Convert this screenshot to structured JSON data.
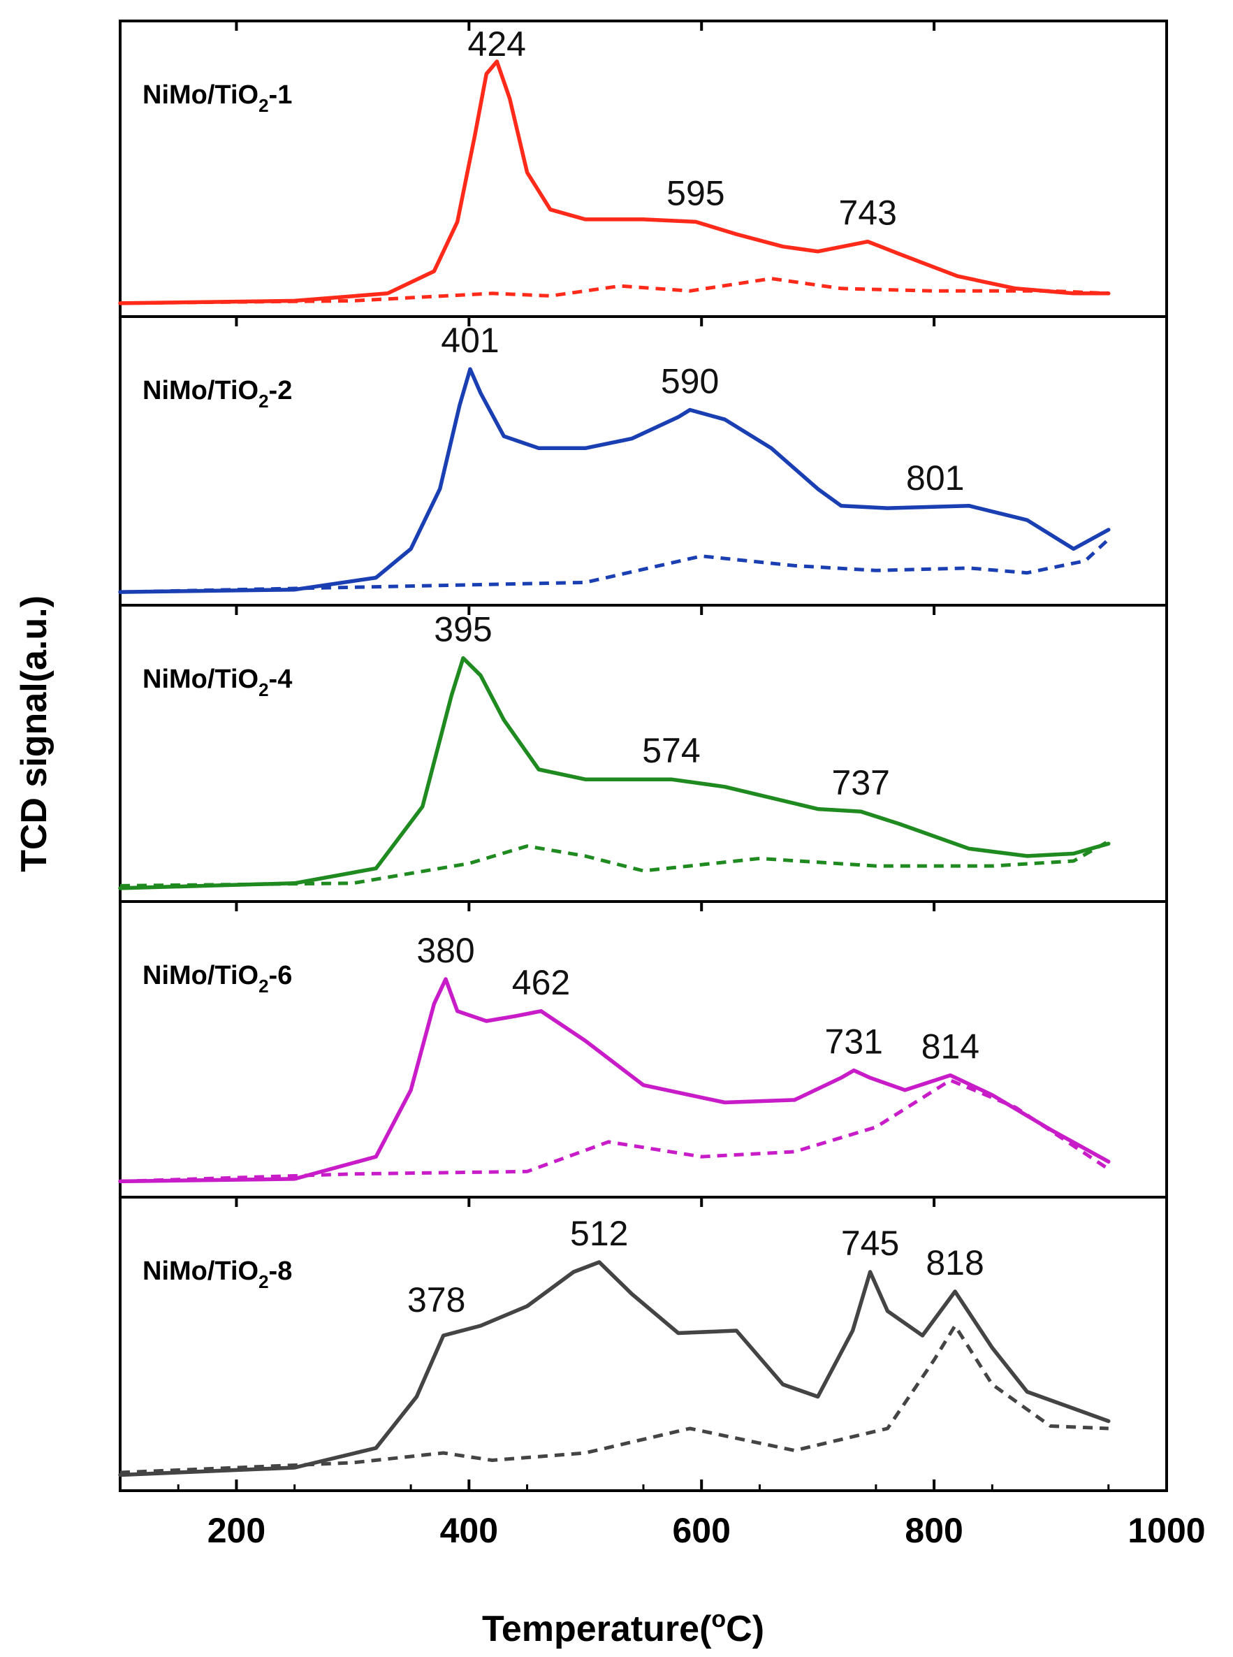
{
  "chart_data": {
    "type": "line",
    "ylabel": "TCD signal(a.u.)",
    "xlabel_prefix": "Temperature(",
    "xlabel_degree": "o",
    "xlabel_suffix": "C)",
    "xlim": [
      100,
      1000
    ],
    "xticks": [
      "200",
      "400",
      "600",
      "800",
      "1000"
    ],
    "xtick_values": [
      200,
      400,
      600,
      800,
      1000
    ],
    "panels": [
      {
        "name": "NiMo/TiO2-1",
        "label_main": "NiMo/TiO",
        "label_sub": "2",
        "label_suffix": "-1",
        "color": "#ff2a1a",
        "peaks": [
          {
            "x": 424,
            "label": "424"
          },
          {
            "x": 595,
            "label": "595"
          },
          {
            "x": 743,
            "label": "743"
          }
        ],
        "solid": {
          "x": [
            100,
            250,
            330,
            370,
            390,
            405,
            415,
            424,
            435,
            450,
            470,
            500,
            550,
            595,
            630,
            670,
            700,
            743,
            770,
            820,
            870,
            920,
            950
          ],
          "y": [
            0.02,
            0.03,
            0.06,
            0.15,
            0.35,
            0.7,
            0.95,
            1.0,
            0.85,
            0.55,
            0.4,
            0.36,
            0.36,
            0.35,
            0.3,
            0.25,
            0.23,
            0.27,
            0.22,
            0.13,
            0.08,
            0.06,
            0.06
          ]
        },
        "dashed": {
          "x": [
            100,
            300,
            420,
            470,
            530,
            590,
            660,
            720,
            800,
            900,
            950
          ],
          "y": [
            0.02,
            0.03,
            0.06,
            0.05,
            0.09,
            0.07,
            0.12,
            0.08,
            0.07,
            0.07,
            0.06
          ]
        }
      },
      {
        "name": "NiMo/TiO2-2",
        "label_main": "NiMo/TiO",
        "label_sub": "2",
        "label_suffix": "-2",
        "color": "#1a3fb3",
        "peaks": [
          {
            "x": 401,
            "label": "401"
          },
          {
            "x": 590,
            "label": "590"
          },
          {
            "x": 801,
            "label": "801"
          }
        ],
        "solid": {
          "x": [
            100,
            250,
            320,
            350,
            375,
            392,
            401,
            410,
            430,
            460,
            500,
            540,
            580,
            590,
            620,
            660,
            700,
            720,
            760,
            830,
            880,
            920,
            950
          ],
          "y": [
            0.02,
            0.03,
            0.08,
            0.2,
            0.45,
            0.8,
            0.95,
            0.85,
            0.67,
            0.62,
            0.62,
            0.66,
            0.75,
            0.78,
            0.74,
            0.62,
            0.45,
            0.38,
            0.37,
            0.38,
            0.32,
            0.2,
            0.28
          ]
        },
        "dashed": {
          "x": [
            100,
            300,
            500,
            600,
            680,
            750,
            830,
            880,
            930,
            950
          ],
          "y": [
            0.02,
            0.04,
            0.06,
            0.17,
            0.13,
            0.11,
            0.12,
            0.1,
            0.15,
            0.24
          ]
        }
      },
      {
        "name": "NiMo/TiO2-4",
        "label_main": "NiMo/TiO",
        "label_sub": "2",
        "label_suffix": "-4",
        "color": "#1f8a1f",
        "peaks": [
          {
            "x": 395,
            "label": "395"
          },
          {
            "x": 574,
            "label": "574"
          },
          {
            "x": 737,
            "label": "737"
          }
        ],
        "solid": {
          "x": [
            100,
            250,
            320,
            360,
            385,
            395,
            410,
            430,
            460,
            500,
            574,
            620,
            700,
            737,
            770,
            830,
            880,
            920,
            950
          ],
          "y": [
            0.02,
            0.04,
            0.1,
            0.35,
            0.8,
            0.95,
            0.88,
            0.7,
            0.5,
            0.46,
            0.46,
            0.43,
            0.34,
            0.33,
            0.28,
            0.18,
            0.15,
            0.16,
            0.2
          ]
        },
        "dashed": {
          "x": [
            100,
            300,
            400,
            450,
            500,
            550,
            650,
            750,
            850,
            920,
            950
          ],
          "y": [
            0.03,
            0.04,
            0.12,
            0.19,
            0.15,
            0.09,
            0.14,
            0.11,
            0.11,
            0.13,
            0.21
          ]
        }
      },
      {
        "name": "NiMo/TiO2-6",
        "label_main": "NiMo/TiO",
        "label_sub": "2",
        "label_suffix": "-6",
        "color": "#c81cc8",
        "peaks": [
          {
            "x": 380,
            "label": "380"
          },
          {
            "x": 462,
            "label": "462"
          },
          {
            "x": 731,
            "label": "731"
          },
          {
            "x": 814,
            "label": "814"
          }
        ],
        "solid": {
          "x": [
            100,
            250,
            320,
            350,
            370,
            380,
            390,
            415,
            440,
            462,
            500,
            550,
            620,
            680,
            720,
            731,
            745,
            775,
            814,
            850,
            900,
            950
          ],
          "y": [
            0.03,
            0.04,
            0.13,
            0.4,
            0.75,
            0.85,
            0.72,
            0.68,
            0.7,
            0.72,
            0.6,
            0.42,
            0.35,
            0.36,
            0.45,
            0.48,
            0.45,
            0.4,
            0.46,
            0.38,
            0.24,
            0.11
          ]
        },
        "dashed": {
          "x": [
            100,
            300,
            450,
            520,
            600,
            680,
            750,
            814,
            870,
            950
          ],
          "y": [
            0.03,
            0.06,
            0.07,
            0.19,
            0.13,
            0.15,
            0.25,
            0.44,
            0.33,
            0.08
          ]
        }
      },
      {
        "name": "NiMo/TiO2-8",
        "label_main": "NiMo/TiO",
        "label_sub": "2",
        "label_suffix": "-8",
        "color": "#444444",
        "peaks": [
          {
            "x": 378,
            "label": "378"
          },
          {
            "x": 512,
            "label": "512"
          },
          {
            "x": 745,
            "label": "745"
          },
          {
            "x": 818,
            "label": "818"
          }
        ],
        "solid": {
          "x": [
            100,
            250,
            320,
            355,
            378,
            410,
            450,
            490,
            512,
            540,
            580,
            630,
            670,
            700,
            730,
            745,
            760,
            790,
            818,
            850,
            880,
            950
          ],
          "y": [
            0.03,
            0.06,
            0.14,
            0.35,
            0.6,
            0.64,
            0.72,
            0.86,
            0.9,
            0.77,
            0.61,
            0.62,
            0.4,
            0.35,
            0.62,
            0.86,
            0.7,
            0.6,
            0.78,
            0.55,
            0.37,
            0.25
          ]
        },
        "dashed": {
          "x": [
            100,
            300,
            378,
            420,
            500,
            590,
            680,
            760,
            800,
            818,
            850,
            900,
            950
          ],
          "y": [
            0.04,
            0.08,
            0.12,
            0.09,
            0.12,
            0.22,
            0.13,
            0.22,
            0.5,
            0.64,
            0.4,
            0.23,
            0.22
          ]
        }
      }
    ]
  }
}
